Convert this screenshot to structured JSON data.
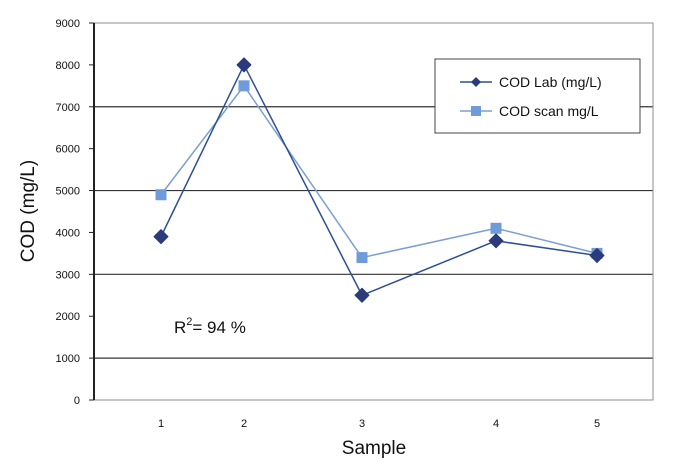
{
  "chart_data": {
    "type": "line",
    "title": "",
    "xlabel": "Sample",
    "ylabel": "COD (mg/L)",
    "categories": [
      "1",
      "2",
      "3",
      "4",
      "5"
    ],
    "ylim": [
      0,
      9000
    ],
    "yticks": [
      "0",
      "1000",
      "2000",
      "3000",
      "4000",
      "5000",
      "6000",
      "7000",
      "8000",
      "9000"
    ],
    "ytick_values": [
      0,
      1000,
      2000,
      3000,
      4000,
      5000,
      6000,
      7000,
      8000,
      9000
    ],
    "gridlines": [
      1000,
      3000,
      5000,
      7000
    ],
    "grid": true,
    "legend_position": "top-right",
    "series": [
      {
        "name": "COD Lab (mg/L)",
        "marker": "diamond",
        "color": "#2b3a7a",
        "line_color": "#2e4f96",
        "values": [
          3900,
          8000,
          2500,
          3800,
          3450
        ]
      },
      {
        "name": "COD scan mg/L",
        "marker": "square",
        "color": "#6f9bd8",
        "line_color": "#7a9fd0",
        "values": [
          4900,
          7500,
          3400,
          4100,
          3500
        ]
      }
    ],
    "annotations": [
      {
        "text_main": "R",
        "text_sup": "2",
        "text_rest": "= 94 %"
      }
    ]
  }
}
